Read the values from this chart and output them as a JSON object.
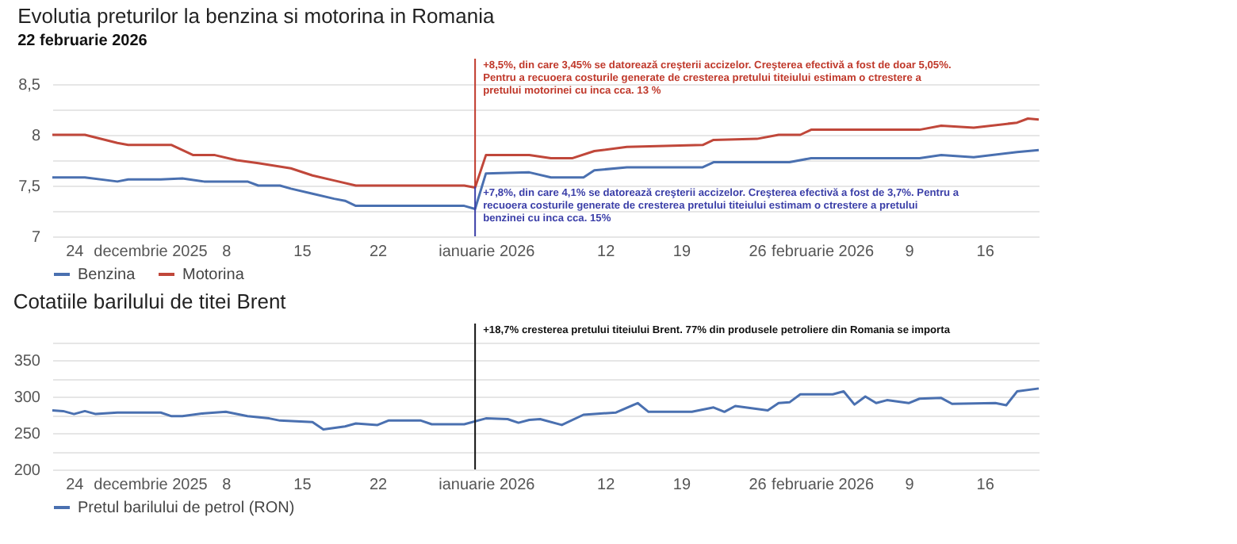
{
  "chart_data": [
    {
      "type": "line",
      "title": "Evolutia preturilor la benzina si motorina in Romania",
      "subtitle": "22 februarie 2026",
      "xlim": [
        "2025-11-22",
        "2026-02-21"
      ],
      "xticks": [
        {
          "value": "2025-11-24",
          "label": "24"
        },
        {
          "value": "2025-12-01",
          "label": "decembrie 2025"
        },
        {
          "value": "2025-12-08",
          "label": "8"
        },
        {
          "value": "2025-12-15",
          "label": "15"
        },
        {
          "value": "2025-12-22",
          "label": "22"
        },
        {
          "value": "2026-01-01",
          "label": "ianuarie 2026"
        },
        {
          "value": "2026-01-12",
          "label": "12"
        },
        {
          "value": "2026-01-19",
          "label": "19"
        },
        {
          "value": "2026-01-26",
          "label": "26"
        },
        {
          "value": "2026-02-01",
          "label": "februarie 2026"
        },
        {
          "value": "2026-02-09",
          "label": "9"
        },
        {
          "value": "2026-02-16",
          "label": "16"
        }
      ],
      "ylim": [
        7,
        8.75
      ],
      "yticks": [
        7,
        {
          "value": 7.25,
          "label": null
        },
        {
          "value": 7.5,
          "label": "7,5"
        },
        {
          "value": 7.75,
          "label": null
        },
        8,
        {
          "value": 8.25,
          "label": null
        },
        {
          "value": 8.5,
          "label": "8,5"
        }
      ],
      "grid": "y",
      "legend": "bottom",
      "series": [
        {
          "name": "Benzina",
          "color": "#4a70b0",
          "x": [
            "2025-11-22",
            "2025-11-25",
            "2025-11-28",
            "2025-11-29",
            "2025-12-02",
            "2025-12-04",
            "2025-12-06",
            "2025-12-10",
            "2025-12-11",
            "2025-12-13",
            "2025-12-14",
            "2025-12-16",
            "2025-12-18",
            "2025-12-19",
            "2025-12-20",
            "2025-12-30",
            "2025-12-31",
            "2026-01-01",
            "2026-01-05",
            "2026-01-07",
            "2026-01-10",
            "2026-01-11",
            "2026-01-14",
            "2026-01-21",
            "2026-01-22",
            "2026-01-29",
            "2026-01-31",
            "2026-02-10",
            "2026-02-12",
            "2026-02-15",
            "2026-02-19",
            "2026-02-21"
          ],
          "values": [
            7.58,
            7.58,
            7.54,
            7.56,
            7.56,
            7.57,
            7.54,
            7.54,
            7.5,
            7.5,
            7.47,
            7.42,
            7.37,
            7.35,
            7.3,
            7.3,
            7.27,
            7.62,
            7.63,
            7.58,
            7.58,
            7.65,
            7.68,
            7.68,
            7.73,
            7.73,
            7.77,
            7.77,
            7.8,
            7.78,
            7.83,
            7.85
          ]
        },
        {
          "name": "Motorina",
          "color": "#c0473a",
          "x": [
            "2025-11-22",
            "2025-11-25",
            "2025-11-28",
            "2025-11-29",
            "2025-12-03",
            "2025-12-05",
            "2025-12-07",
            "2025-12-09",
            "2025-12-11",
            "2025-12-14",
            "2025-12-16",
            "2025-12-18",
            "2025-12-20",
            "2025-12-30",
            "2025-12-31",
            "2026-01-01",
            "2026-01-05",
            "2026-01-07",
            "2026-01-09",
            "2026-01-11",
            "2026-01-14",
            "2026-01-21",
            "2026-01-22",
            "2026-01-26",
            "2026-01-28",
            "2026-01-30",
            "2026-01-31",
            "2026-02-10",
            "2026-02-12",
            "2026-02-15",
            "2026-02-19",
            "2026-02-20",
            "2026-02-21"
          ],
          "values": [
            8.0,
            8.0,
            7.92,
            7.9,
            7.9,
            7.8,
            7.8,
            7.75,
            7.72,
            7.67,
            7.6,
            7.55,
            7.5,
            7.5,
            7.48,
            7.8,
            7.8,
            7.77,
            7.77,
            7.84,
            7.88,
            7.9,
            7.95,
            7.96,
            8.0,
            8.0,
            8.05,
            8.05,
            8.09,
            8.07,
            8.12,
            8.16,
            8.15
          ]
        }
      ],
      "ref_lines": [
        {
          "axis": "x",
          "value": "2025-12-31",
          "color": "#c0392b",
          "label": "+8,5%, din care 3,45% se datorează creşterii accizelor. Creşterea efectivă a fost de doar 5,05%. Pentru a recuoera costurile generate de cresterea pretului titeiului estimam o ctrestere a pretului motorinei cu inca cca. 13 %"
        },
        {
          "axis": "x",
          "value": "2025-12-31",
          "color": "#3b3fa8",
          "label": "+7,8%, din care 4,1% se datorează creşterii accizelor. Creşterea efectivă a fost de 3,7%. Pentru a recuoera costurile generate de cresterea pretului titeiului estimam o ctrestere a pretului benzinei cu inca cca. 15%"
        }
      ]
    },
    {
      "type": "line",
      "title": "Cotatiile barilului de titei Brent",
      "xlim": [
        "2025-11-22",
        "2026-02-21"
      ],
      "xticks": [
        {
          "value": "2025-11-24",
          "label": "24"
        },
        {
          "value": "2025-12-01",
          "label": "decembrie 2025"
        },
        {
          "value": "2025-12-08",
          "label": "8"
        },
        {
          "value": "2025-12-15",
          "label": "15"
        },
        {
          "value": "2025-12-22",
          "label": "22"
        },
        {
          "value": "2026-01-01",
          "label": "ianuarie 2026"
        },
        {
          "value": "2026-01-12",
          "label": "12"
        },
        {
          "value": "2026-01-19",
          "label": "19"
        },
        {
          "value": "2026-01-26",
          "label": "26"
        },
        {
          "value": "2026-02-01",
          "label": "februarie 2026"
        },
        {
          "value": "2026-02-09",
          "label": "9"
        },
        {
          "value": "2026-02-16",
          "label": "16"
        }
      ],
      "ylim": [
        200,
        400
      ],
      "yticks": [
        200,
        {
          "value": 225,
          "label": null
        },
        250,
        {
          "value": 275,
          "label": null
        },
        300,
        {
          "value": 325,
          "label": null
        },
        350,
        {
          "value": 375,
          "label": null
        }
      ],
      "grid": "y",
      "legend": "bottom",
      "series": [
        {
          "name": "Pretul barilului de petrol (RON)",
          "color": "#4a70b0",
          "x": [
            "2025-11-22",
            "2025-11-23",
            "2025-11-24",
            "2025-11-25",
            "2025-11-26",
            "2025-11-28",
            "2025-12-02",
            "2025-12-03",
            "2025-12-04",
            "2025-12-06",
            "2025-12-08",
            "2025-12-10",
            "2025-12-12",
            "2025-12-13",
            "2025-12-16",
            "2025-12-17",
            "2025-12-19",
            "2025-12-20",
            "2025-12-22",
            "2025-12-23",
            "2025-12-26",
            "2025-12-27",
            "2025-12-30",
            "2026-01-01",
            "2026-01-03",
            "2026-01-04",
            "2026-01-05",
            "2026-01-06",
            "2026-01-08",
            "2026-01-10",
            "2026-01-13",
            "2026-01-15",
            "2026-01-16",
            "2026-01-20",
            "2026-01-22",
            "2026-01-23",
            "2026-01-24",
            "2026-01-27",
            "2026-01-28",
            "2026-01-29",
            "2026-01-30",
            "2026-02-02",
            "2026-02-03",
            "2026-02-04",
            "2026-02-05",
            "2026-02-06",
            "2026-02-07",
            "2026-02-09",
            "2026-02-10",
            "2026-02-12",
            "2026-02-13",
            "2026-02-17",
            "2026-02-18",
            "2026-02-19",
            "2026-02-21"
          ],
          "values": [
            281,
            280,
            276,
            280,
            276,
            278,
            278,
            273,
            273,
            277,
            279,
            273,
            270,
            267,
            265,
            255,
            259,
            263,
            261,
            267,
            267,
            262,
            262,
            270,
            269,
            264,
            268,
            269,
            261,
            275,
            278,
            291,
            279,
            279,
            285,
            279,
            287,
            281,
            291,
            292,
            303,
            303,
            307,
            289,
            300,
            291,
            295,
            291,
            297,
            298,
            290,
            291,
            288,
            307,
            311
          ]
        }
      ],
      "ref_lines": [
        {
          "axis": "x",
          "value": "2025-12-31",
          "color": "#111111",
          "label": "+18,7% cresterea pretului titeiului Brent. 77% din produsele petroliere din Romania se importa"
        }
      ]
    }
  ]
}
